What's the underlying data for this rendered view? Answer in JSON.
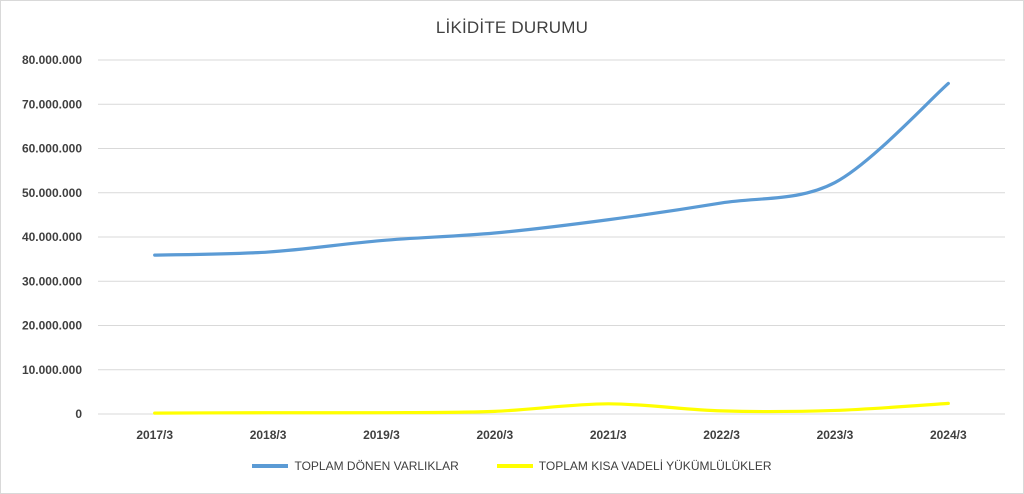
{
  "chart_data": {
    "type": "line",
    "title": "LİKİDİTE DURUMU",
    "categories": [
      "2017/3",
      "2018/3",
      "2019/3",
      "2020/3",
      "2021/3",
      "2022/3",
      "2023/3",
      "2024/3"
    ],
    "ylim": [
      0,
      80000000
    ],
    "yticks": [
      {
        "value": 0,
        "label": "0"
      },
      {
        "value": 10000000,
        "label": "10.000.000"
      },
      {
        "value": 20000000,
        "label": "20.000.000"
      },
      {
        "value": 30000000,
        "label": "30.000.000"
      },
      {
        "value": 40000000,
        "label": "40.000.000"
      },
      {
        "value": 50000000,
        "label": "50.000.000"
      },
      {
        "value": 60000000,
        "label": "60.000.000"
      },
      {
        "value": 70000000,
        "label": "70.000.000"
      },
      {
        "value": 80000000,
        "label": "80.000.000"
      }
    ],
    "grid": true,
    "legend_position": "bottom",
    "series": [
      {
        "name": "TOPLAM DÖNEN VARLIKLAR",
        "color": "#5b9bd5",
        "values": [
          35900000,
          36600000,
          39200000,
          40900000,
          43900000,
          47700000,
          52300000,
          74700000
        ]
      },
      {
        "name": "TOPLAM KISA VADELİ YÜKÜMLÜLÜKLER",
        "color": "#ffff00",
        "values": [
          200000,
          300000,
          300000,
          600000,
          2300000,
          700000,
          800000,
          2400000
        ]
      }
    ]
  }
}
